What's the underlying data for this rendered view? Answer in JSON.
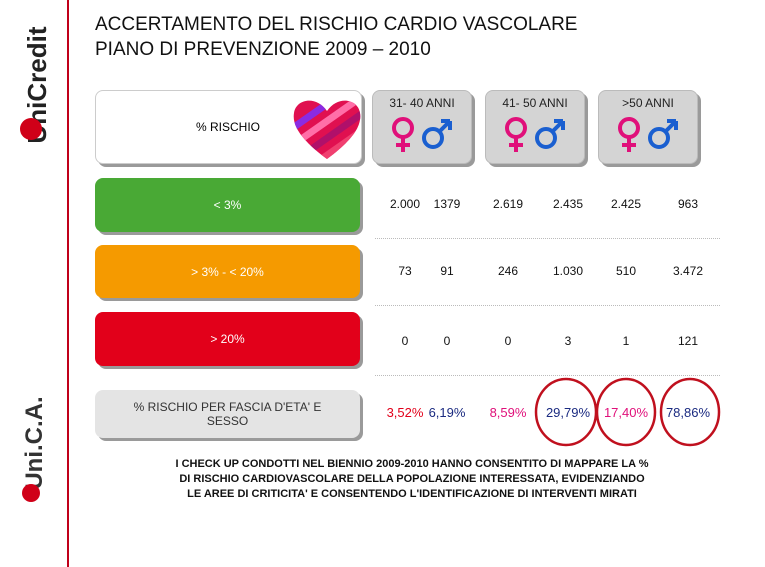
{
  "logos": [
    "UniCredit",
    "Uni.C.A."
  ],
  "header": {
    "title_lines": [
      "ACCERTAMENTO DEL RISCHIO CARDIO VASCOLARE",
      "PIANO DI PREVENZIONE 2009 – 2010"
    ]
  },
  "table": {
    "corner": "% RISCHIO",
    "columns": [
      "31- 40 ANNI",
      "41- 50 ANNI",
      ">50 ANNI"
    ],
    "rows": [
      {
        "label": "< 3%",
        "cells": [
          "2.000",
          "1379",
          "2.619",
          "2.435",
          "2.425",
          "963"
        ]
      },
      {
        "label": "> 3% - < 20%",
        "cells": [
          "73",
          "91",
          "246",
          "1.030",
          "510",
          "3.472"
        ]
      },
      {
        "label": "> 20%",
        "cells": [
          "0",
          "0",
          "0",
          "3",
          "1",
          "121"
        ]
      },
      {
        "label": "% RISCHIO PER FASCIA D'ETA' E SESSO",
        "cells": [
          "3,52%",
          "6,19%",
          "8,59%",
          "29,79%",
          "17,40%",
          "78,86%"
        ]
      }
    ]
  },
  "footer": [
    "I CHECK UP CONDOTTI NEL BIENNIO 2009-2010 HANNO CONSENTITO DI MAPPARE LA %",
    "DI RISCHIO CARDIOVASCOLARE DELLA POPOLAZIONE INTERESSATA, EVIDENZIANDO",
    "LE AREE DI CRITICITA' E CONSENTENDO L'IDENTIFICAZIONE DI INTERVENTI MIRATI"
  ]
}
